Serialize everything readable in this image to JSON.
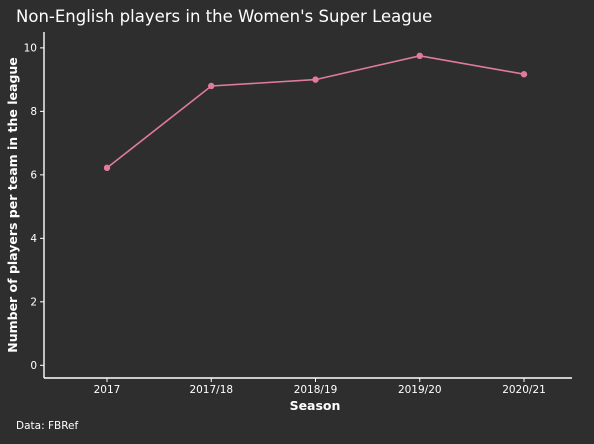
{
  "chart_data": {
    "type": "line",
    "title": "Non-English players in the Women's Super League",
    "xlabel": "Season",
    "ylabel": "Number of players per team in the league",
    "caption": "Data: FBRef",
    "categories": [
      "2017",
      "2017/18",
      "2018/19",
      "2019/20",
      "2020/21"
    ],
    "series": [
      {
        "values": [
          6.22,
          8.8,
          9.0,
          9.75,
          9.17
        ],
        "color": "#e07aa0"
      }
    ],
    "ylim": [
      -0.4,
      10.5
    ],
    "yticks": [
      0,
      2,
      4,
      6,
      8,
      10
    ],
    "grid": false,
    "legend": "none",
    "background": "#2e2e2e",
    "axis_color": "#ffffff"
  }
}
